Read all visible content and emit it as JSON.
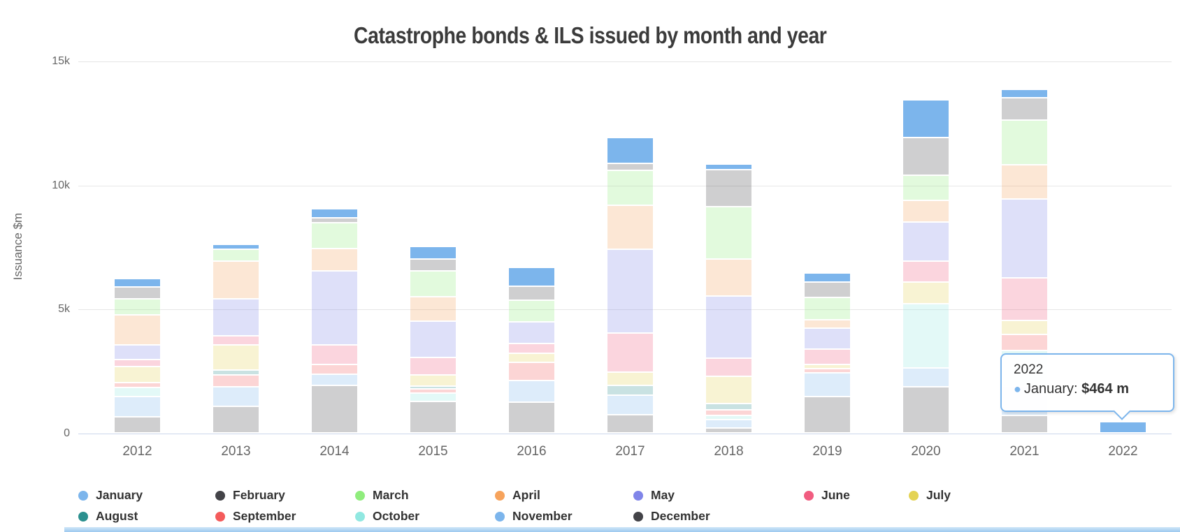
{
  "title": "Catastrophe bonds & ILS issued by month and year",
  "y_axis": {
    "title": "Issuance $m",
    "ticks": [
      {
        "label": "15k",
        "value": 15000
      },
      {
        "label": "10k",
        "value": 10000
      },
      {
        "label": "5k",
        "value": 5000
      },
      {
        "label": "0",
        "value": 0
      }
    ]
  },
  "chart_data": {
    "type": "bar",
    "stacked": true,
    "title": "Catastrophe bonds & ILS issued by month and year",
    "xlabel": "",
    "ylabel": "Issuance $m",
    "ylim": [
      0,
      15000
    ],
    "grid": true,
    "legend_position": "bottom",
    "highlighted_series": "January",
    "dimmed_opacity": 0.25,
    "categories": [
      "2012",
      "2013",
      "2014",
      "2015",
      "2016",
      "2017",
      "2018",
      "2019",
      "2020",
      "2021",
      "2022"
    ],
    "series": [
      {
        "name": "January",
        "color": "#7cb5ec",
        "values": [
          340,
          200,
          370,
          505,
          760,
          1050,
          230,
          360,
          1520,
          345,
          464
        ]
      },
      {
        "name": "February",
        "color": "#434348",
        "values": [
          480,
          0,
          200,
          495,
          565,
          295,
          1495,
          620,
          1530,
          920,
          0
        ]
      },
      {
        "name": "March",
        "color": "#90ed7d",
        "values": [
          630,
          480,
          1055,
          1040,
          870,
          1410,
          2100,
          900,
          1020,
          1800,
          0
        ]
      },
      {
        "name": "April",
        "color": "#f7a35c",
        "values": [
          1225,
          1530,
          900,
          970,
          0,
          1760,
          1490,
          340,
          880,
          1365,
          0
        ]
      },
      {
        "name": "May",
        "color": "#8085e9",
        "values": [
          575,
          1475,
          2980,
          1480,
          890,
          3380,
          2510,
          850,
          1570,
          3195,
          0
        ]
      },
      {
        "name": "June",
        "color": "#f15c80",
        "values": [
          280,
          385,
          790,
          690,
          375,
          1595,
          740,
          625,
          835,
          1720,
          0
        ]
      },
      {
        "name": "July",
        "color": "#e4d354",
        "values": [
          660,
          1005,
          0,
          450,
          365,
          530,
          1105,
          160,
          875,
          565,
          0
        ]
      },
      {
        "name": "August",
        "color": "#2b908f",
        "values": [
          0,
          205,
          0,
          130,
          0,
          395,
          260,
          0,
          0,
          0,
          0
        ]
      },
      {
        "name": "September",
        "color": "#f45b5b",
        "values": [
          210,
          470,
          380,
          175,
          740,
          0,
          210,
          165,
          0,
          650,
          0
        ]
      },
      {
        "name": "October",
        "color": "#91e8e1",
        "values": [
          340,
          0,
          0,
          320,
          0,
          0,
          165,
          0,
          2590,
          1465,
          0
        ]
      },
      {
        "name": "November",
        "color": "#7cb5ec",
        "values": [
          830,
          800,
          475,
          0,
          880,
          775,
          355,
          970,
          775,
          1155,
          0
        ]
      },
      {
        "name": "December",
        "color": "#434348",
        "values": [
          660,
          1070,
          1915,
          1285,
          1245,
          750,
          200,
          1465,
          1865,
          705,
          0
        ]
      }
    ],
    "totals": [
      6230,
      7620,
      9065,
      7540,
      6690,
      11940,
      10860,
      6455,
      13460,
      13885,
      464
    ]
  },
  "tooltip": {
    "header": "2022",
    "bullet": "●",
    "series_label": "January",
    "separator": ": ",
    "value": "$464 m"
  }
}
